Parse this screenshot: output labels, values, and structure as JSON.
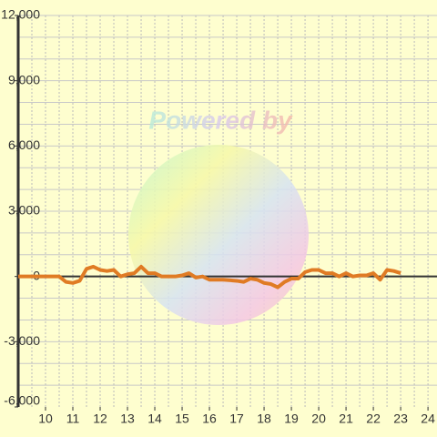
{
  "chart_data": {
    "type": "line",
    "watermark": "Powered by",
    "x": [
      9,
      10.5,
      10.75,
      11,
      11.25,
      11.5,
      11.75,
      12,
      12.25,
      12.5,
      12.75,
      13,
      13.25,
      13.5,
      13.75,
      14,
      14.25,
      14.5,
      14.75,
      15,
      15.25,
      15.5,
      15.75,
      16,
      16.5,
      17,
      17.25,
      17.5,
      17.75,
      18,
      18.25,
      18.5,
      18.75,
      19,
      19.25,
      19.5,
      19.75,
      20,
      20.25,
      20.5,
      20.75,
      21,
      21.25,
      21.5,
      21.75,
      22,
      22.25,
      22.5,
      22.75,
      23
    ],
    "series": [
      {
        "color": "#e07b24",
        "values": [
          0,
          0,
          -250,
          -300,
          -200,
          350,
          450,
          300,
          250,
          300,
          0,
          100,
          150,
          450,
          150,
          150,
          0,
          0,
          0,
          50,
          150,
          -50,
          0,
          -150,
          -150,
          -200,
          -250,
          -100,
          -150,
          -300,
          -350,
          -500,
          -250,
          -100,
          -100,
          200,
          300,
          300,
          150,
          150,
          0,
          150,
          0,
          50,
          50,
          150,
          -150,
          300,
          250,
          150
        ]
      }
    ],
    "xlim": [
      9,
      24.33
    ],
    "ylim": [
      -6000,
      12000
    ],
    "xticks": [
      10,
      11,
      12,
      13,
      14,
      15,
      16,
      17,
      18,
      19,
      20,
      21,
      22,
      23,
      24
    ],
    "yticks": [
      {
        "value": -6000,
        "label": "-6,000"
      },
      {
        "value": -3000,
        "label": "-3,000"
      },
      0,
      {
        "value": 3000,
        "label": "3,000"
      },
      {
        "value": 6000,
        "label": "6,000"
      },
      {
        "value": 9000,
        "label": "9,000"
      },
      {
        "value": 12000,
        "label": "12,000"
      }
    ],
    "x_minor_grid": [
      9.5,
      10,
      10.5,
      11,
      11.5,
      12,
      12.5,
      13,
      13.5,
      14,
      14.5,
      15,
      15.5,
      16,
      16.5,
      17,
      17.5,
      18,
      18.5,
      19,
      19.5,
      20,
      20.5,
      21,
      21.5,
      22,
      22.5,
      23,
      23.5,
      24
    ],
    "y_minor_grid": [
      -5000,
      -4000,
      -3000,
      -2000,
      -1000,
      1000,
      2000,
      3000,
      4000,
      5000,
      6000,
      7000,
      8000,
      9000,
      10000,
      11000,
      12000
    ],
    "grid": true
  }
}
